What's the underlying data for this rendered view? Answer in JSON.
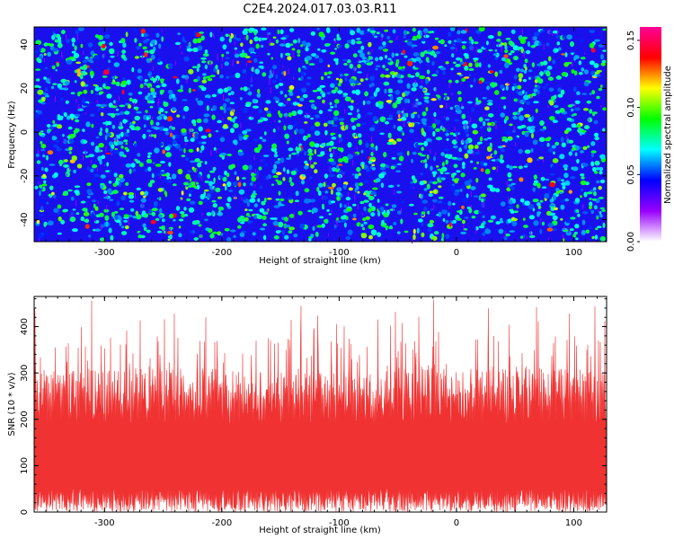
{
  "title": "C2E4.2024.017.03.03.R11",
  "spectrogram": {
    "type": "heatmap",
    "xlabel": "Height of straight line (km)",
    "ylabel": "Frequency (Hz)",
    "xlim": [
      -360,
      128
    ],
    "ylim": [
      -50,
      48
    ],
    "xticks": [
      -300,
      -200,
      -100,
      0,
      100
    ],
    "yticks": [
      -40,
      -20,
      0,
      20,
      40
    ],
    "colorbar": {
      "label": "Normalized spectral amplitude",
      "range": [
        0.0,
        0.16
      ],
      "ticks": [
        "0.00",
        "0.05",
        "0.10",
        "0.15"
      ],
      "colors": [
        "#ffffff",
        "#9900ff",
        "#0000ff",
        "#00ffff",
        "#00ff00",
        "#ffff00",
        "#ff0000",
        "#ff0099"
      ]
    }
  },
  "snr": {
    "type": "area",
    "xlabel": "Height of straight line (km)",
    "ylabel": "SNR (10 * v/v)",
    "xlim": [
      -360,
      128
    ],
    "ylim": [
      0,
      465
    ],
    "xticks": [
      -300,
      -200,
      -100,
      0,
      100
    ],
    "yticks": [
      0,
      100,
      200,
      300,
      400
    ],
    "color": "#f03232",
    "approx_envelope": {
      "lower_min": 0,
      "lower_max": 50,
      "typical_high": 280,
      "peak": 460
    }
  }
}
